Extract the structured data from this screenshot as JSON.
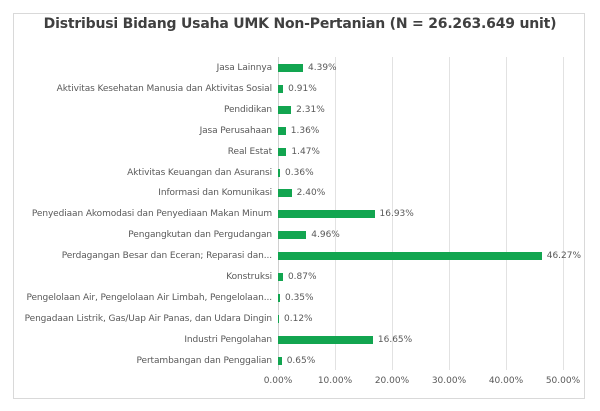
{
  "chart_data": {
    "type": "bar",
    "orientation": "horizontal",
    "title": "Distribusi Bidang Usaha UMK Non-Pertanian (N = 26.263.649 unit)",
    "xlabel": "",
    "ylabel": "",
    "xlim": [
      0,
      50
    ],
    "grid": true,
    "legend": null,
    "bar_color": "#12a550",
    "x_ticks": [
      "0.00%",
      "10.00%",
      "20.00%",
      "30.00%",
      "40.00%",
      "50.00%"
    ],
    "categories": [
      "Jasa Lainnya",
      "Aktivitas Kesehatan Manusia dan Aktivitas Sosial",
      "Pendidikan",
      "Jasa Perusahaan",
      "Real Estat",
      "Aktivitas Keuangan dan Asuransi",
      "Informasi dan Komunikasi",
      "Penyediaan Akomodasi dan Penyediaan Makan Minum",
      "Pengangkutan dan Pergudangan",
      "Perdagangan Besar dan Eceran; Reparasi dan...",
      "Konstruksi",
      "Pengelolaan Air, Pengelolaan Air Limbah, Pengelolaan...",
      "Pengadaan Listrik, Gas/Uap Air Panas, dan Udara Dingin",
      "Industri Pengolahan",
      "Pertambangan dan Penggalian"
    ],
    "values": [
      4.39,
      0.91,
      2.31,
      1.36,
      1.47,
      0.36,
      2.4,
      16.93,
      4.96,
      46.27,
      0.87,
      0.35,
      0.12,
      16.65,
      0.65
    ],
    "value_labels": [
      "4.39%",
      "0.91%",
      "2.31%",
      "1.36%",
      "1.47%",
      "0.36%",
      "2.40%",
      "16.93%",
      "4.96%",
      "46.27%",
      "0.87%",
      "0.35%",
      "0.12%",
      "16.65%",
      "0.65%"
    ]
  }
}
